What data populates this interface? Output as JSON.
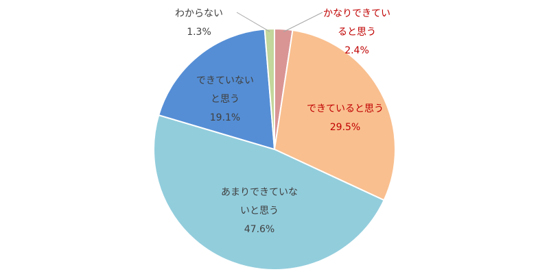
{
  "chart_data": {
    "type": "pie",
    "title": "",
    "slices": [
      {
        "name": "かなりできていると思う",
        "label_lines": [
          "かなりできてい",
          "ると思う"
        ],
        "value": 2.4,
        "value_text": "2.4%",
        "color": "#d99594",
        "label_color": "#c00000"
      },
      {
        "name": "できていると思う",
        "label_lines": [
          "できていると思う"
        ],
        "value": 29.5,
        "value_text": "29.5%",
        "color": "#f9bf8f",
        "label_color": "#c00000"
      },
      {
        "name": "あまりできていないと思う",
        "label_lines": [
          "あまりできていな",
          "いと思う"
        ],
        "value": 47.6,
        "value_text": "47.6%",
        "color": "#92cddc",
        "label_color": "#404040"
      },
      {
        "name": "できていないと思う",
        "label_lines": [
          "できていない",
          "と思う"
        ],
        "value": 19.1,
        "value_text": "19.1%",
        "color": "#558ed5",
        "label_color": "#404040"
      },
      {
        "name": "わからない",
        "label_lines": [
          "わからない"
        ],
        "value": 1.3,
        "value_text": "1.3%",
        "color": "#c3d69b",
        "label_color": "#404040"
      }
    ],
    "start": "top",
    "direction": "clockwise",
    "legend": "none"
  }
}
